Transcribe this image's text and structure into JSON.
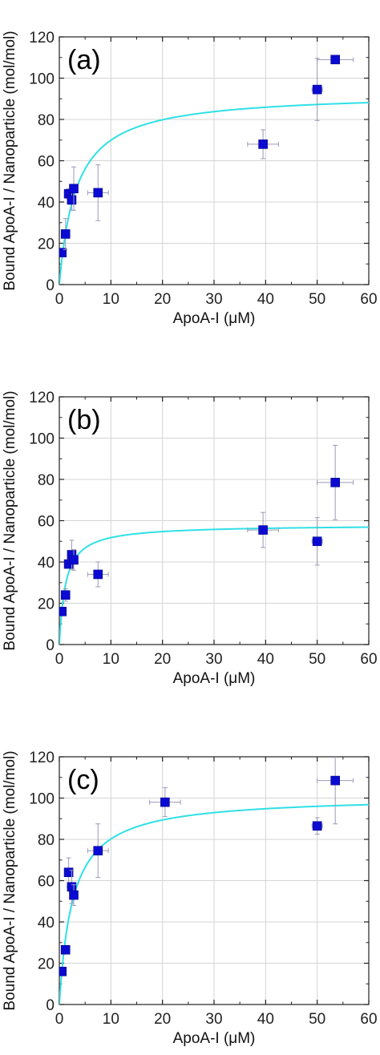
{
  "chart_data": [
    {
      "type": "scatter",
      "panel_label": "(a)",
      "xlabel": "ApoA-I (μM)",
      "ylabel": "Bound ApoA-I / Nanoparticle (mol/mol)",
      "xlim": [
        0,
        60
      ],
      "ylim": [
        0,
        120
      ],
      "xticks": [
        "0",
        "10",
        "20",
        "30",
        "40",
        "50",
        "60"
      ],
      "yticks": [
        "0",
        "20",
        "40",
        "60",
        "80",
        "100",
        "120"
      ],
      "grid": true,
      "points": [
        {
          "x": 0.5,
          "y": 15.5,
          "xerr": 0.5,
          "yerr": 0
        },
        {
          "x": 1.2,
          "y": 24.5,
          "xerr": 0.3,
          "yerr": 7.5
        },
        {
          "x": 1.8,
          "y": 44,
          "xerr": 0.4,
          "yerr": 2.5
        },
        {
          "x": 2.4,
          "y": 41,
          "xerr": 0.5,
          "yerr": 5
        },
        {
          "x": 2.8,
          "y": 46.5,
          "xerr": 0.5,
          "yerr": 10.5
        },
        {
          "x": 7.5,
          "y": 44.5,
          "xerr": 2,
          "yerr": 13.5
        },
        {
          "x": 39.5,
          "y": 68,
          "xerr": 3,
          "yerr": 7
        },
        {
          "x": 50,
          "y": 94.5,
          "xerr": 1,
          "yerr": 15
        },
        {
          "x": 53.5,
          "y": 109,
          "xerr": 3.5,
          "yerr": 0
        }
      ],
      "fit": {
        "model": "saturation",
        "bmax": 93,
        "kd": 3.3
      },
      "marker_color": "#0a0ad2",
      "fit_color": "#2fe0e6"
    },
    {
      "type": "scatter",
      "panel_label": "(b)",
      "xlabel": "ApoA-I (μM)",
      "ylabel": "Bound ApoA-I / Nanoparticle (mol/mol)",
      "xlim": [
        0,
        60
      ],
      "ylim": [
        0,
        120
      ],
      "xticks": [
        "0",
        "10",
        "20",
        "30",
        "40",
        "50",
        "60"
      ],
      "yticks": [
        "0",
        "20",
        "40",
        "60",
        "80",
        "100",
        "120"
      ],
      "grid": true,
      "points": [
        {
          "x": 0.5,
          "y": 16,
          "xerr": 0.5,
          "yerr": 0
        },
        {
          "x": 1.2,
          "y": 24,
          "xerr": 0.3,
          "yerr": 3
        },
        {
          "x": 1.8,
          "y": 39,
          "xerr": 0.4,
          "yerr": 2
        },
        {
          "x": 2.4,
          "y": 43.5,
          "xerr": 0.5,
          "yerr": 7
        },
        {
          "x": 2.8,
          "y": 41,
          "xerr": 0.5,
          "yerr": 5
        },
        {
          "x": 7.5,
          "y": 34,
          "xerr": 2,
          "yerr": 6
        },
        {
          "x": 39.5,
          "y": 55.5,
          "xerr": 3,
          "yerr": 8.5
        },
        {
          "x": 50,
          "y": 50,
          "xerr": 1,
          "yerr": 11.5
        },
        {
          "x": 53.5,
          "y": 78.5,
          "xerr": 3.5,
          "yerr": 18
        }
      ],
      "fit": {
        "model": "saturation",
        "bmax": 58,
        "kd": 1.2
      },
      "marker_color": "#0a0ad2",
      "fit_color": "#2fe0e6"
    },
    {
      "type": "scatter",
      "panel_label": "(c)",
      "xlabel": "ApoA-I (μM)",
      "ylabel": "Bound ApoA-I / Nanoparticle (mol/mol)",
      "xlim": [
        0,
        60
      ],
      "ylim": [
        0,
        120
      ],
      "xticks": [
        "0",
        "10",
        "20",
        "30",
        "40",
        "50",
        "60"
      ],
      "yticks": [
        "0",
        "20",
        "40",
        "60",
        "80",
        "100",
        "120"
      ],
      "grid": true,
      "points": [
        {
          "x": 0.5,
          "y": 16,
          "xerr": 0.5,
          "yerr": 0
        },
        {
          "x": 1.2,
          "y": 26.5,
          "xerr": 0.3,
          "yerr": 0
        },
        {
          "x": 1.8,
          "y": 64,
          "xerr": 0.4,
          "yerr": 7
        },
        {
          "x": 2.4,
          "y": 57,
          "xerr": 0.5,
          "yerr": 8
        },
        {
          "x": 2.8,
          "y": 53,
          "xerr": 0.5,
          "yerr": 5
        },
        {
          "x": 7.5,
          "y": 74.5,
          "xerr": 2,
          "yerr": 13
        },
        {
          "x": 20.5,
          "y": 98,
          "xerr": 3,
          "yerr": 7
        },
        {
          "x": 50,
          "y": 86.5,
          "xerr": 1,
          "yerr": 4
        },
        {
          "x": 53.5,
          "y": 108.5,
          "xerr": 3.5,
          "yerr": 21
        }
      ],
      "fit": {
        "model": "saturation",
        "bmax": 101,
        "kd": 2.6
      },
      "marker_color": "#0a0ad2",
      "fit_color": "#2fe0e6"
    }
  ]
}
